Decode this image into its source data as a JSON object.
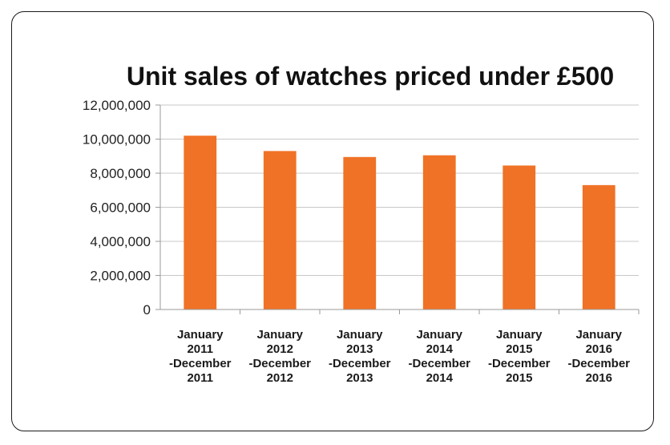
{
  "chart_data": {
    "type": "bar",
    "title": "Unit sales of watches priced under £500",
    "xlabel": "",
    "ylabel": "",
    "ylim": [
      0,
      12000000
    ],
    "yticks": [
      0,
      2000000,
      4000000,
      6000000,
      8000000,
      10000000,
      12000000
    ],
    "ytick_labels": [
      "0",
      "2,000,000",
      "4,000,000",
      "6,000,000",
      "8,000,000",
      "10,000,000",
      "12,000,000"
    ],
    "grid": true,
    "legend": "none",
    "categories": [
      [
        "January",
        "2011",
        "-December",
        "2011"
      ],
      [
        "January",
        "2012",
        "-December",
        "2012"
      ],
      [
        "January",
        "2013",
        "-December",
        "2013"
      ],
      [
        "January",
        "2014",
        "-December",
        "2014"
      ],
      [
        "January",
        "2015",
        "-December",
        "2015"
      ],
      [
        "January",
        "2016",
        "-December",
        "2016"
      ]
    ],
    "values": [
      10200000,
      9300000,
      8950000,
      9050000,
      8450000,
      7300000
    ],
    "bar_color": "#f07226",
    "grid_color": "#c8c8c8",
    "axis_color": "#9a9a9a"
  }
}
